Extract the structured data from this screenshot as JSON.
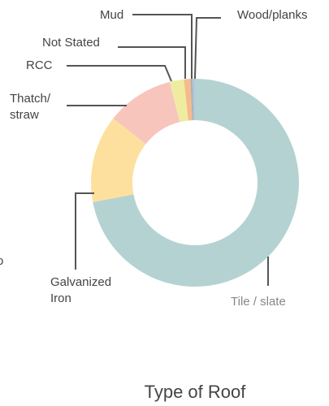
{
  "chart_data": {
    "type": "pie",
    "title": "Type of Roof",
    "categories": [
      "Tile / slate",
      "Galvanized Iron",
      "Thatch/ straw",
      "RCC",
      "Not Stated",
      "Mud",
      "Wood/planks"
    ],
    "values": [
      72,
      13.6,
      10.5,
      2.2,
      1.0,
      0.35,
      0.35
    ],
    "colors": [
      "#b5d2d2",
      "#fde09e",
      "#f8c5bd",
      "#efeca2",
      "#f7ba8c",
      "#b0b0b0",
      "#a9c9e0"
    ],
    "clipped_label": "o"
  }
}
